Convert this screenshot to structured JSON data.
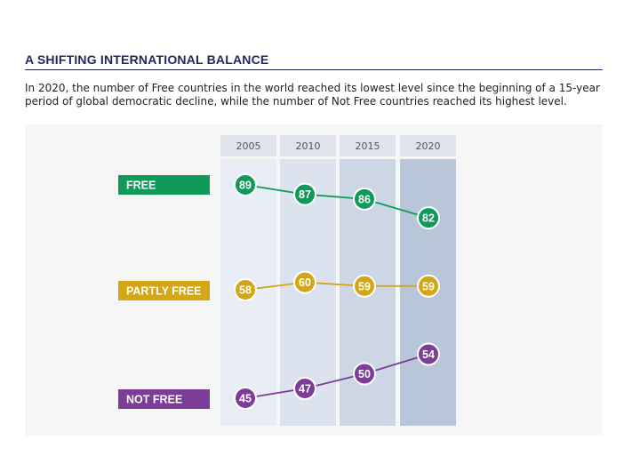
{
  "header": {
    "title": "A SHIFTING INTERNATIONAL BALANCE",
    "subtitle": "In 2020, the number of Free countries in the world reached its lowest level since the beginning of a 15-year period of global democratic decline, while the number of Not Free countries reached its highest level."
  },
  "chart_data": {
    "type": "line",
    "categories": [
      "2005",
      "2010",
      "2015",
      "2020"
    ],
    "series": [
      {
        "name": "FREE",
        "values": [
          89,
          87,
          86,
          82
        ],
        "color": "#0f9a5a"
      },
      {
        "name": "PARTLY FREE",
        "values": [
          58,
          60,
          59,
          59
        ],
        "color": "#d4a514"
      },
      {
        "name": "NOT FREE",
        "values": [
          45,
          47,
          50,
          54
        ],
        "color": "#7d3c98"
      }
    ],
    "column_colors": [
      "#e9edf5",
      "#dde3ee",
      "#cdd6e4",
      "#b9c6da"
    ],
    "year_header_color": "#dfe4ec",
    "grid": false,
    "legend": "left"
  }
}
